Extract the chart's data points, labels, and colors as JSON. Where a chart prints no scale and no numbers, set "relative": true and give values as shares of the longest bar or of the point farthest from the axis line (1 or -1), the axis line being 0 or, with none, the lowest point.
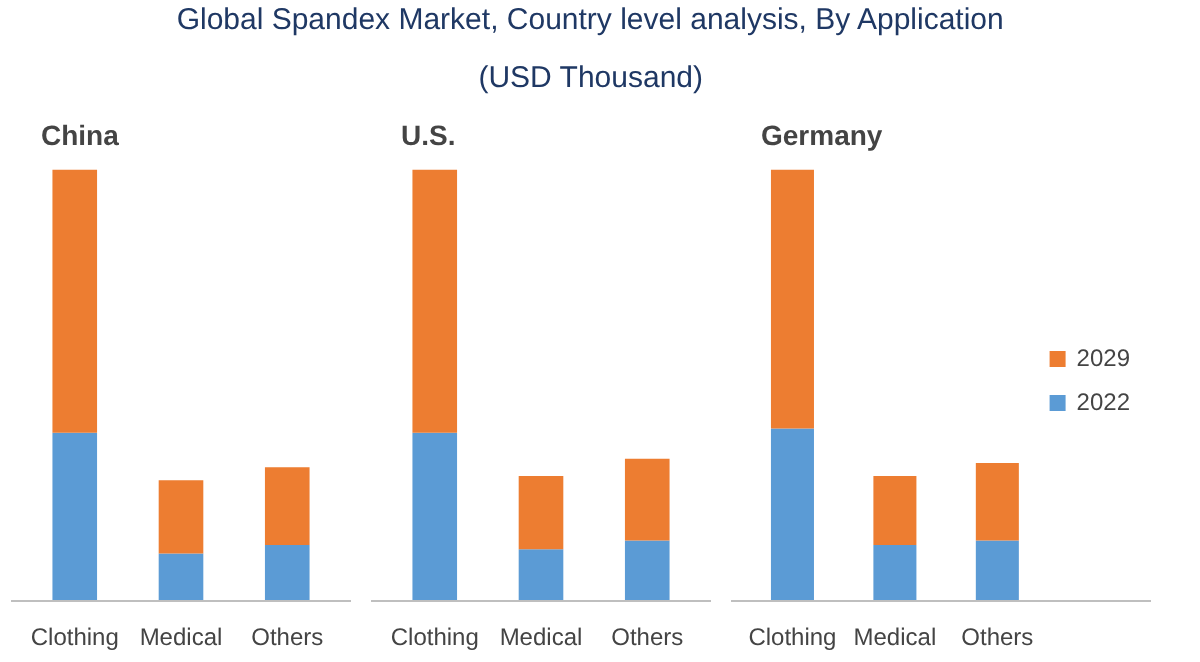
{
  "chart_data": [
    {
      "type": "other",
      "title": "Global Spandex Market, Country level analysis, By Application",
      "subtitle": "(USD Thousand)"
    },
    {
      "type": "bar",
      "title": "China",
      "categories": [
        "Clothing",
        "Medical",
        "Others"
      ],
      "relative": true,
      "stacked": true,
      "legend": false,
      "series": [
        {
          "color": "#5b9bd5",
          "values": [
            0.39,
            0.11,
            0.13
          ]
        },
        {
          "color": "#ed7d31",
          "values": [
            0.61,
            0.17,
            0.18
          ]
        }
      ]
    },
    {
      "type": "bar",
      "title": "U.S.",
      "categories": [
        "Clothing",
        "Medical",
        "Others"
      ],
      "relative": true,
      "stacked": true,
      "legend": false,
      "series": [
        {
          "color": "#5b9bd5",
          "values": [
            0.39,
            0.12,
            0.14
          ]
        },
        {
          "color": "#ed7d31",
          "values": [
            0.61,
            0.17,
            0.19
          ]
        }
      ]
    },
    {
      "type": "bar",
      "title": "Germany",
      "categories": [
        "Clothing",
        "Medical",
        "Others"
      ],
      "relative": true,
      "stacked": true,
      "legend": "right",
      "series": [
        {
          "name": "2022",
          "color": "#5b9bd5",
          "values": [
            0.4,
            0.13,
            0.14
          ]
        },
        {
          "name": "2029",
          "color": "#ed7d31",
          "values": [
            0.6,
            0.16,
            0.18
          ]
        }
      ]
    }
  ]
}
